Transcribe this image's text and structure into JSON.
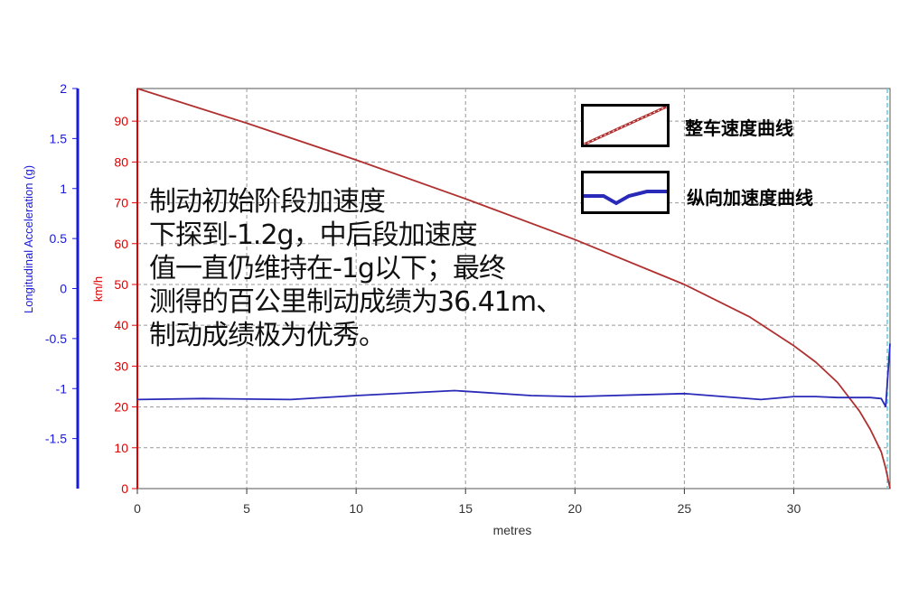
{
  "chart_data": {
    "type": "line",
    "xlabel": "metres",
    "x_range": [
      0,
      34.4
    ],
    "x_ticks": [
      0,
      5,
      10,
      15,
      20,
      25,
      30
    ],
    "left_axis": {
      "label": "Longitudinal Acceleration (g)",
      "color": "#1a1adb",
      "range": [
        -2,
        2
      ],
      "ticks": [
        "2",
        "1.5",
        "1",
        "0.5",
        "0",
        "-0.5",
        "-1",
        "-1.5"
      ]
    },
    "right_axis": {
      "label": "km/h",
      "color": "#e00000",
      "range": [
        0,
        98
      ],
      "ticks": [
        "90",
        "80",
        "70",
        "60",
        "50",
        "40",
        "30",
        "20",
        "10",
        "0"
      ]
    },
    "grid": true,
    "legend_position": "top-right",
    "series": [
      {
        "name": "整车速度曲线",
        "axis": "speed",
        "color": "#b03030",
        "x": [
          0,
          5,
          10,
          15,
          20,
          25,
          28,
          30,
          31,
          32,
          33,
          33.5,
          34,
          34.2,
          34.4
        ],
        "y": [
          98,
          89.5,
          80.5,
          71,
          61,
          50,
          42,
          35,
          31,
          26,
          19,
          14.5,
          9,
          5,
          0
        ]
      },
      {
        "name": "纵向加速度曲线",
        "axis": "accel",
        "color": "#2a2ab8",
        "x": [
          0,
          3,
          7,
          10,
          14.5,
          18,
          20,
          25,
          28.5,
          30,
          31,
          32,
          33,
          33.5,
          34,
          34.2,
          34.4
        ],
        "y": [
          -1.11,
          -1.1,
          -1.11,
          -1.07,
          -1.02,
          -1.07,
          -1.08,
          -1.05,
          -1.11,
          -1.08,
          -1.08,
          -1.09,
          -1.09,
          -1.09,
          -1.1,
          -1.18,
          -0.55
        ]
      }
    ]
  },
  "annotation": {
    "lines": [
      "制动初始阶段加速度",
      "下探到-1.2g，中后段加速度",
      "值一直仍维持在-1g以下；最终",
      "测得的百公里制动成绩为36.41m、",
      "制动成绩极为优秀。"
    ]
  },
  "legend": {
    "speed_label": "整车速度曲线",
    "accel_label": "纵向加速度曲线"
  }
}
